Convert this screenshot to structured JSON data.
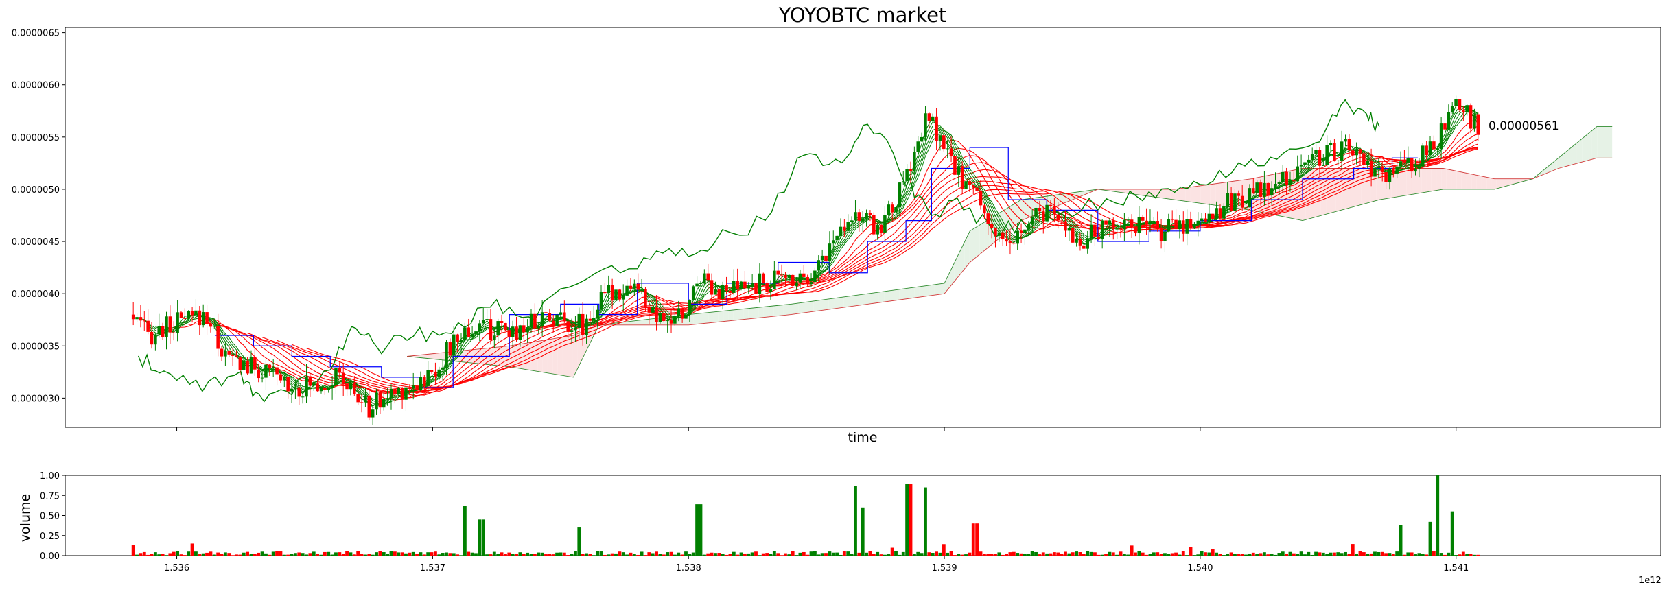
{
  "chart_data": [
    {
      "type": "candlestick",
      "title": "YOYOBTC market",
      "xlabel": "time",
      "ylabel": "",
      "x_offset_label": "1e12",
      "xlim": [
        1535564000000,
        1541800000000
      ],
      "ylim": [
        2.72e-06,
        6.55e-06
      ],
      "x_ticks": [
        1536000000000,
        1537000000000,
        1538000000000,
        1539000000000,
        1540000000000,
        1541000000000
      ],
      "x_tick_labels": [
        "1.536",
        "1.537",
        "1.538",
        "1.539",
        "1.540",
        "1.541"
      ],
      "y_ticks": [
        3e-06,
        3.5e-06,
        4e-06,
        4.5e-06,
        5e-06,
        5.5e-06,
        6e-06,
        6.5e-06
      ],
      "y_tick_labels": [
        "0.0000030",
        "0.0000035",
        "0.0000040",
        "0.0000045",
        "0.0000050",
        "0.0000055",
        "0.0000060",
        "0.0000065"
      ],
      "last_price_label": "0.00000561",
      "last_price_value": 5.61e-06,
      "colors": {
        "up": "#008000",
        "down": "#ff0000",
        "conversion_line": "#0000ff",
        "lagging_span": "#008000",
        "fast_mas": "#008000",
        "slow_mas": "#ff0000",
        "cloud_bull_fill": "#e6f2e6",
        "cloud_bear_fill": "#fbe3e3"
      },
      "grid": false,
      "legend": "none",
      "price_path_anchors": [
        [
          1535830000000,
          3.8e-06
        ],
        [
          1535900000000,
          3.6e-06
        ],
        [
          1536000000000,
          3.7e-06
        ],
        [
          1536130000000,
          3.8e-06
        ],
        [
          1536200000000,
          3.4e-06
        ],
        [
          1536300000000,
          3.3e-06
        ],
        [
          1536500000000,
          3.1e-06
        ],
        [
          1536650000000,
          3.2e-06
        ],
        [
          1536760000000,
          2.9e-06
        ],
        [
          1536900000000,
          3.1e-06
        ],
        [
          1537000000000,
          3.2e-06
        ],
        [
          1537120000000,
          3.6e-06
        ],
        [
          1537200000000,
          3.7e-06
        ],
        [
          1537300000000,
          3.6e-06
        ],
        [
          1537450000000,
          3.8e-06
        ],
        [
          1537600000000,
          3.7e-06
        ],
        [
          1537700000000,
          4e-06
        ],
        [
          1537800000000,
          4.1e-06
        ],
        [
          1537900000000,
          3.7e-06
        ],
        [
          1538000000000,
          3.8e-06
        ],
        [
          1538060000000,
          4.2e-06
        ],
        [
          1538150000000,
          4e-06
        ],
        [
          1538300000000,
          4.1e-06
        ],
        [
          1538500000000,
          4.2e-06
        ],
        [
          1538580000000,
          4.5e-06
        ],
        [
          1538650000000,
          4.8e-06
        ],
        [
          1538750000000,
          4.6e-06
        ],
        [
          1538850000000,
          5e-06
        ],
        [
          1538950000000,
          5.7e-06
        ],
        [
          1539050000000,
          5.2e-06
        ],
        [
          1539150000000,
          4.9e-06
        ],
        [
          1539250000000,
          4.4e-06
        ],
        [
          1539400000000,
          4.8e-06
        ],
        [
          1539550000000,
          4.5e-06
        ],
        [
          1539700000000,
          4.7e-06
        ],
        [
          1539850000000,
          4.6e-06
        ],
        [
          1540000000000,
          4.7e-06
        ],
        [
          1540150000000,
          4.9e-06
        ],
        [
          1540300000000,
          5e-06
        ],
        [
          1540450000000,
          5.3e-06
        ],
        [
          1540600000000,
          5.4e-06
        ],
        [
          1540700000000,
          5.1e-06
        ],
        [
          1540800000000,
          5.2e-06
        ],
        [
          1540880000000,
          5.3e-06
        ],
        [
          1540950000000,
          5.5e-06
        ],
        [
          1541020000000,
          5.8e-06
        ],
        [
          1541100000000,
          5.61e-06
        ]
      ],
      "conversion_line": [
        [
          1536150000000,
          3.6e-06
        ],
        [
          1536300000000,
          3.5e-06
        ],
        [
          1536450000000,
          3.4e-06
        ],
        [
          1536600000000,
          3.3e-06
        ],
        [
          1536800000000,
          3.2e-06
        ],
        [
          1536950000000,
          3.1e-06
        ],
        [
          1537080000000,
          3.4e-06
        ],
        [
          1537300000000,
          3.8e-06
        ],
        [
          1537500000000,
          3.9e-06
        ],
        [
          1537650000000,
          3.8e-06
        ],
        [
          1537800000000,
          4.1e-06
        ],
        [
          1538000000000,
          3.9e-06
        ],
        [
          1538150000000,
          4.1e-06
        ],
        [
          1538350000000,
          4.3e-06
        ],
        [
          1538550000000,
          4.2e-06
        ],
        [
          1538700000000,
          4.5e-06
        ],
        [
          1538850000000,
          4.7e-06
        ],
        [
          1538950000000,
          5.2e-06
        ],
        [
          1539100000000,
          5.4e-06
        ],
        [
          1539250000000,
          4.9e-06
        ],
        [
          1539400000000,
          4.8e-06
        ],
        [
          1539600000000,
          4.5e-06
        ],
        [
          1539800000000,
          4.6e-06
        ],
        [
          1540000000000,
          4.7e-06
        ],
        [
          1540200000000,
          4.9e-06
        ],
        [
          1540400000000,
          5.1e-06
        ],
        [
          1540600000000,
          5.2e-06
        ],
        [
          1540750000000,
          5.3e-06
        ],
        [
          1540850000000,
          5.3e-06
        ]
      ],
      "lagging_span": [
        [
          1535850000000,
          3.4e-06
        ],
        [
          1535950000000,
          3.2e-06
        ],
        [
          1536100000000,
          3.1e-06
        ],
        [
          1536250000000,
          3.2e-06
        ],
        [
          1536320000000,
          3e-06
        ],
        [
          1536450000000,
          3.1e-06
        ],
        [
          1536600000000,
          3.3e-06
        ],
        [
          1536700000000,
          3.7e-06
        ],
        [
          1536800000000,
          3.5e-06
        ],
        [
          1536950000000,
          3.6e-06
        ],
        [
          1537100000000,
          3.7e-06
        ],
        [
          1537250000000,
          3.9e-06
        ],
        [
          1537400000000,
          3.8e-06
        ],
        [
          1537600000000,
          4.2e-06
        ],
        [
          1537800000000,
          4.3e-06
        ],
        [
          1537950000000,
          4.4e-06
        ],
        [
          1538100000000,
          4.5e-06
        ],
        [
          1538300000000,
          4.7e-06
        ],
        [
          1538450000000,
          5.4e-06
        ],
        [
          1538600000000,
          5.2e-06
        ],
        [
          1538700000000,
          5.7e-06
        ],
        [
          1538850000000,
          5.1e-06
        ],
        [
          1538950000000,
          4.7e-06
        ],
        [
          1539050000000,
          4.9e-06
        ],
        [
          1539200000000,
          4.6e-06
        ],
        [
          1539350000000,
          4.7e-06
        ],
        [
          1539500000000,
          4.8e-06
        ],
        [
          1539700000000,
          4.9e-06
        ],
        [
          1539850000000,
          5e-06
        ],
        [
          1540000000000,
          5.1e-06
        ],
        [
          1540150000000,
          5.2e-06
        ],
        [
          1540300000000,
          5.3e-06
        ],
        [
          1540450000000,
          5.4e-06
        ],
        [
          1540550000000,
          5.8e-06
        ],
        [
          1540650000000,
          5.7e-06
        ],
        [
          1540700000000,
          5.6e-06
        ]
      ],
      "cloud_span_a": [
        [
          1536900000000,
          3.4e-06
        ],
        [
          1537300000000,
          3.3e-06
        ],
        [
          1537550000000,
          3.2e-06
        ],
        [
          1537650000000,
          3.7e-06
        ],
        [
          1538000000000,
          3.8e-06
        ],
        [
          1538400000000,
          3.9e-06
        ],
        [
          1538700000000,
          4e-06
        ],
        [
          1539000000000,
          4.1e-06
        ],
        [
          1539100000000,
          4.6e-06
        ],
        [
          1539300000000,
          4.9e-06
        ],
        [
          1539600000000,
          5e-06
        ],
        [
          1539900000000,
          4.9e-06
        ],
        [
          1540200000000,
          4.8e-06
        ],
        [
          1540400000000,
          4.7e-06
        ],
        [
          1540700000000,
          4.9e-06
        ],
        [
          1540950000000,
          5e-06
        ],
        [
          1541150000000,
          5e-06
        ],
        [
          1541300000000,
          5.1e-06
        ],
        [
          1541400000000,
          5.3e-06
        ],
        [
          1541550000000,
          5.6e-06
        ],
        [
          1541610000000,
          5.6e-06
        ]
      ],
      "cloud_span_b": [
        [
          1536900000000,
          3.4e-06
        ],
        [
          1537300000000,
          3.5e-06
        ],
        [
          1537550000000,
          3.6e-06
        ],
        [
          1537650000000,
          3.7e-06
        ],
        [
          1538000000000,
          3.7e-06
        ],
        [
          1538400000000,
          3.8e-06
        ],
        [
          1538700000000,
          3.9e-06
        ],
        [
          1539000000000,
          4e-06
        ],
        [
          1539100000000,
          4.3e-06
        ],
        [
          1539300000000,
          4.7e-06
        ],
        [
          1539600000000,
          5e-06
        ],
        [
          1539900000000,
          5e-06
        ],
        [
          1540200000000,
          5.1e-06
        ],
        [
          1540400000000,
          5.2e-06
        ],
        [
          1540700000000,
          5.2e-06
        ],
        [
          1540950000000,
          5.2e-06
        ],
        [
          1541150000000,
          5.1e-06
        ],
        [
          1541300000000,
          5.1e-06
        ],
        [
          1541400000000,
          5.2e-06
        ],
        [
          1541550000000,
          5.3e-06
        ],
        [
          1541610000000,
          5.3e-06
        ]
      ]
    },
    {
      "type": "bar",
      "title": "",
      "xlabel": "",
      "ylabel": "volume",
      "xlim": [
        1535564000000,
        1541800000000
      ],
      "ylim": [
        0,
        1.0
      ],
      "y_ticks": [
        0,
        0.25,
        0.5,
        0.75,
        1.0
      ],
      "y_tick_labels": [
        "0.00",
        "0.25",
        "0.50",
        "0.75",
        "1.00"
      ],
      "x_ticks": [
        1536000000000,
        1537000000000,
        1538000000000,
        1539000000000,
        1540000000000,
        1541000000000
      ],
      "x_tick_labels": [
        "1.536",
        "1.537",
        "1.538",
        "1.539",
        "1.540",
        "1.541"
      ],
      "spikes": [
        [
          1536060000000,
          0.15
        ],
        [
          1537130000000,
          0.62
        ],
        [
          1537190000000,
          0.45
        ],
        [
          1537570000000,
          0.35
        ],
        [
          1538040000000,
          0.64
        ],
        [
          1538650000000,
          0.87
        ],
        [
          1538680000000,
          0.6
        ],
        [
          1538860000000,
          0.89
        ],
        [
          1538930000000,
          0.85
        ],
        [
          1539120000000,
          0.4
        ],
        [
          1540780000000,
          0.38
        ],
        [
          1540900000000,
          0.42
        ],
        [
          1540930000000,
          1.0
        ],
        [
          1540990000000,
          0.55
        ]
      ],
      "baseline_volume": 0.03
    }
  ]
}
